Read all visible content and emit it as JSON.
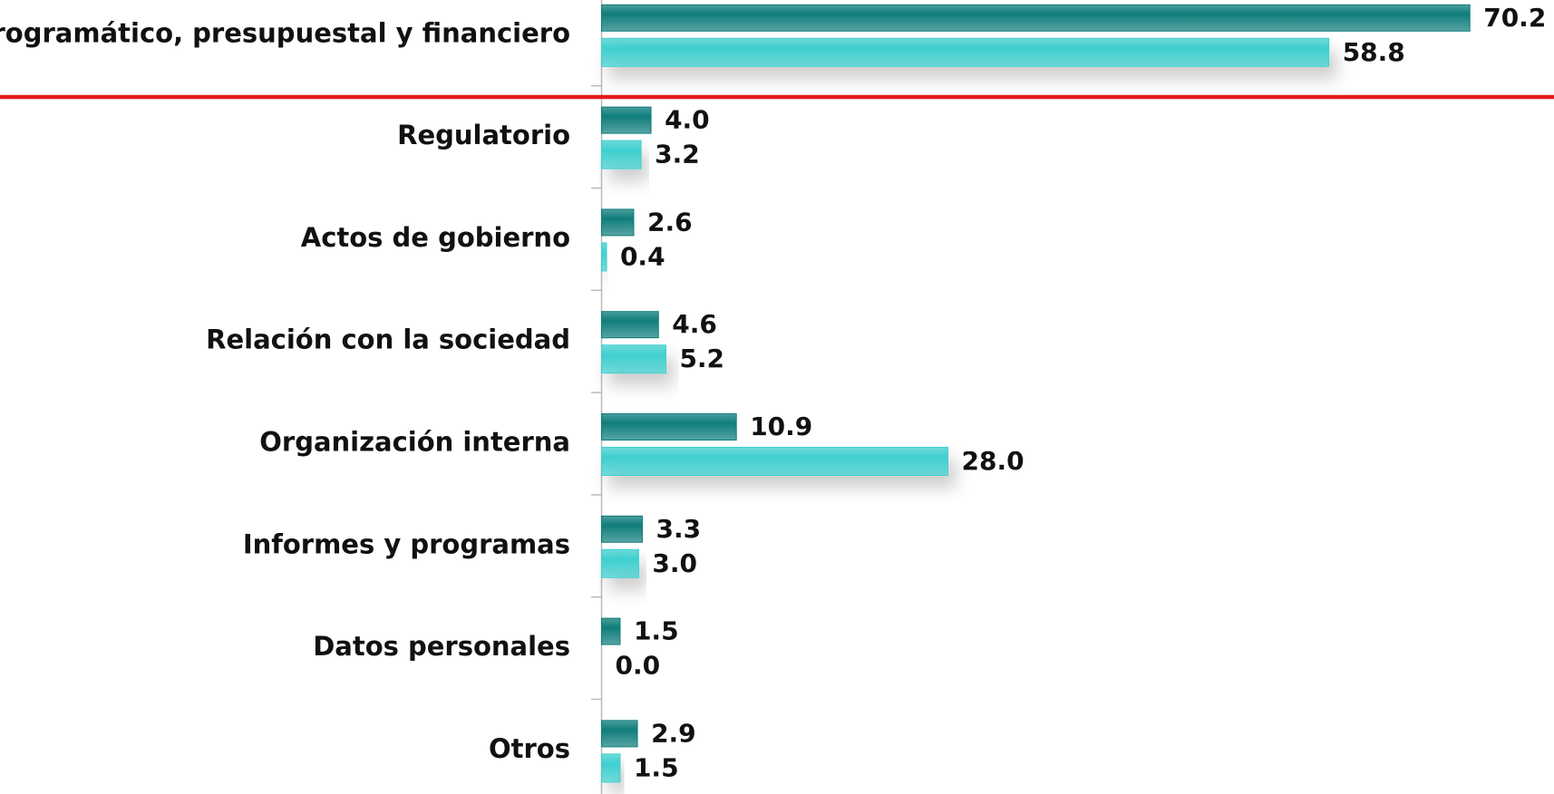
{
  "chart_data": {
    "type": "hbar",
    "categories": [
      "Programático, presupuestal y financiero",
      "Regulatorio",
      "Actos de gobierno",
      "Relación con la sociedad",
      "Organización interna",
      "Informes y programas",
      "Datos personales",
      "Otros"
    ],
    "series": [
      {
        "color": "#0f7d7b",
        "values": [
          70.2,
          4.0,
          2.6,
          4.6,
          10.9,
          3.3,
          1.5,
          2.9
        ],
        "value_labels": [
          "70.2",
          "4.0",
          "2.6",
          "4.6",
          "10.9",
          "3.3",
          "1.5",
          "2.9"
        ]
      },
      {
        "color": "#3fcfcf",
        "values": [
          58.8,
          3.2,
          0.4,
          5.2,
          28.0,
          3.0,
          0.0,
          1.5
        ],
        "value_labels": [
          "58.8",
          "3.2",
          "0.4",
          "5.2",
          "28.0",
          "3.0",
          "0.0",
          "1.5"
        ]
      }
    ],
    "xlim": [
      0,
      77
    ]
  }
}
